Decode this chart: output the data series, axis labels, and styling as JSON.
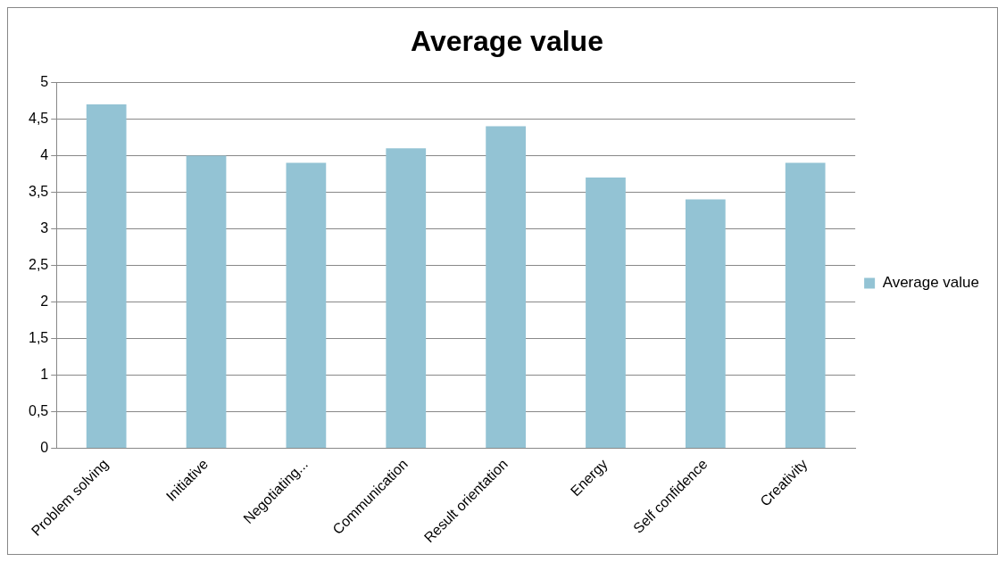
{
  "chart_data": {
    "type": "bar",
    "title": "Average value",
    "categories": [
      "Problem solving",
      "Initiative",
      "Negotiating...",
      "Communication",
      "Result orientation",
      "Energy",
      "Self confidence",
      "Creativity"
    ],
    "series": [
      {
        "name": "Average value",
        "color": "#93c3d4",
        "values": [
          4.7,
          4.0,
          3.9,
          4.1,
          4.4,
          3.7,
          3.4,
          3.9
        ]
      }
    ],
    "ylim": [
      0,
      5
    ],
    "yticks": [
      0,
      {
        "value": 0.5,
        "label": "0,5"
      },
      1,
      {
        "value": 1.5,
        "label": "1,5"
      },
      2,
      {
        "value": 2.5,
        "label": "2,5"
      },
      3,
      {
        "value": 3.5,
        "label": "3,5"
      },
      4,
      {
        "value": 4.5,
        "label": "4,5"
      },
      5
    ],
    "grid": "y",
    "legend": "right"
  }
}
